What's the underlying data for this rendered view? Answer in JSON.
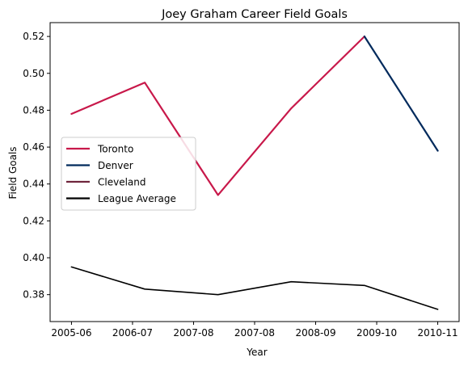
{
  "chart_data": {
    "type": "line",
    "title": "Joey Graham Career Field Goals",
    "xlabel": "Year",
    "ylabel": "Field Goals",
    "x_tick_labels": [
      "2005-06",
      "2006-07",
      "2007-08",
      "2007-08",
      "2008-09",
      "2009-10",
      "2010-11"
    ],
    "x_ticks": [
      0,
      1,
      2,
      3,
      4,
      5,
      6
    ],
    "xlim": [
      -0.35,
      6.35
    ],
    "y_ticks": [
      0.38,
      0.4,
      0.42,
      0.44,
      0.46,
      0.48,
      0.5,
      0.52
    ],
    "y_tick_labels": [
      "0.38",
      "0.40",
      "0.42",
      "0.44",
      "0.46",
      "0.48",
      "0.50",
      "0.52"
    ],
    "ylim": [
      0.3654,
      0.5275
    ],
    "grid": false,
    "legend_placement": "center-left",
    "series": [
      {
        "name": "Toronto",
        "color": "#c8184a",
        "points": [
          {
            "x": 0.0,
            "y": 0.478
          },
          {
            "x": 1.2,
            "y": 0.495
          },
          {
            "x": 2.4,
            "y": 0.434
          },
          {
            "x": 3.6,
            "y": 0.481
          },
          {
            "x": 4.8,
            "y": 0.52
          }
        ]
      },
      {
        "name": "Denver",
        "color": "#002a5c",
        "points": [
          {
            "x": 4.8,
            "y": 0.52
          },
          {
            "x": 6.0,
            "y": 0.458
          }
        ]
      },
      {
        "name": "Cleveland",
        "color": "#6f263d",
        "points": []
      },
      {
        "name": "League Average",
        "color": "#000000",
        "points": [
          {
            "x": 0.0,
            "y": 0.395
          },
          {
            "x": 1.2,
            "y": 0.383
          },
          {
            "x": 2.4,
            "y": 0.38
          },
          {
            "x": 3.6,
            "y": 0.387
          },
          {
            "x": 4.8,
            "y": 0.385
          },
          {
            "x": 6.0,
            "y": 0.372
          }
        ]
      }
    ]
  }
}
